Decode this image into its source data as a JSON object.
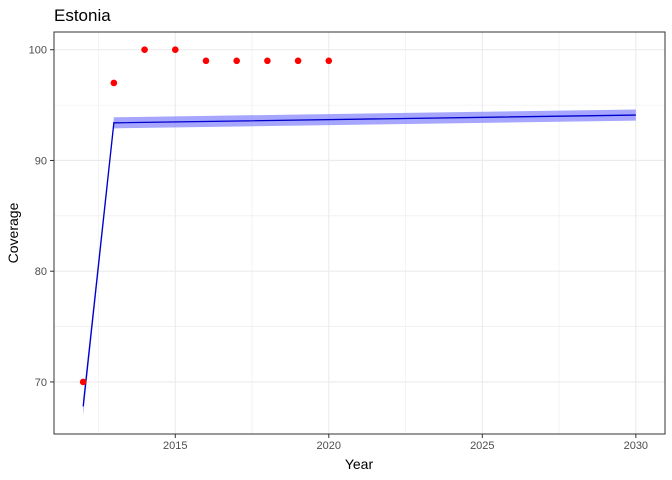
{
  "chart_data": {
    "type": "scatter",
    "title": "Estonia",
    "xlabel": "Year",
    "ylabel": "Coverage",
    "xlim": [
      2011.05,
      2030.95
    ],
    "ylim": [
      65.3,
      101.6
    ],
    "x_ticks": [
      2015,
      2020,
      2025,
      2030
    ],
    "y_ticks": [
      70,
      80,
      90,
      100
    ],
    "x_minor_ticks": [
      2012.5,
      2017.5,
      2022.5,
      2027.5
    ],
    "y_minor_ticks": [
      75,
      85,
      95
    ],
    "grid": true,
    "legend": "none",
    "colors": {
      "points": "#ff0000",
      "line": "#0000cc",
      "band": "#8080ff",
      "grid": "#ebebeb",
      "panel_border": "#333333"
    },
    "series": [
      {
        "type": "points",
        "x": [
          2012,
          2013,
          2014,
          2015,
          2016,
          2017,
          2018,
          2019,
          2020
        ],
        "y": [
          70,
          97,
          100,
          100,
          99,
          99,
          99,
          99,
          99
        ]
      },
      {
        "type": "line",
        "x": [
          2012,
          2013,
          2030
        ],
        "y": [
          67.8,
          93.4,
          94.1
        ]
      },
      {
        "type": "band",
        "x": [
          2012,
          2013,
          2030
        ],
        "ymin": [
          67.0,
          92.9,
          93.6
        ],
        "ymax": [
          68.5,
          93.9,
          94.6
        ]
      }
    ]
  }
}
